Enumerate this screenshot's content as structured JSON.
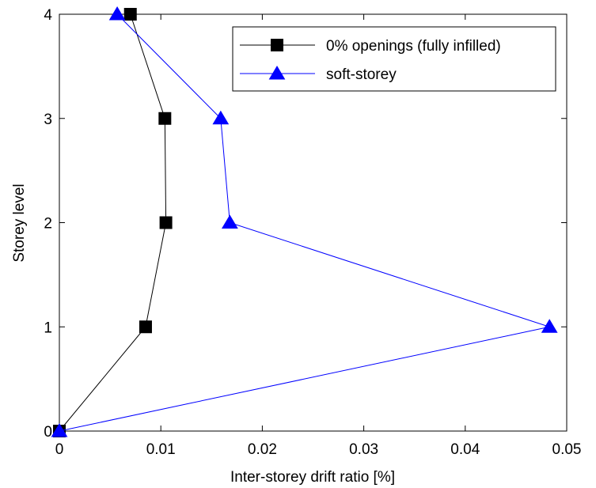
{
  "chart_data": {
    "type": "line",
    "xlabel": "Inter-storey drift ratio   [%]",
    "ylabel": "Storey level",
    "xlim": [
      0,
      0.05
    ],
    "ylim": [
      0,
      4
    ],
    "x_ticks": [
      "0",
      "0.01",
      "0.02",
      "0.03",
      "0.04",
      "0.05"
    ],
    "y_ticks": [
      "0",
      "1",
      "2",
      "3",
      "4"
    ],
    "grid": false,
    "legend_position": "top-right",
    "series": [
      {
        "name": "0% openings (fully infilled)",
        "color": "#000000",
        "marker": "square",
        "points": [
          {
            "x": 0.0,
            "y": 0
          },
          {
            "x": 0.0085,
            "y": 1
          },
          {
            "x": 0.0105,
            "y": 2
          },
          {
            "x": 0.0104,
            "y": 3
          },
          {
            "x": 0.007,
            "y": 4
          }
        ]
      },
      {
        "name": "soft-storey",
        "color": "#0000ff",
        "marker": "triangle",
        "points": [
          {
            "x": 0.0,
            "y": 0
          },
          {
            "x": 0.0483,
            "y": 1
          },
          {
            "x": 0.0168,
            "y": 2
          },
          {
            "x": 0.0159,
            "y": 3
          },
          {
            "x": 0.0057,
            "y": 4
          }
        ]
      }
    ]
  }
}
